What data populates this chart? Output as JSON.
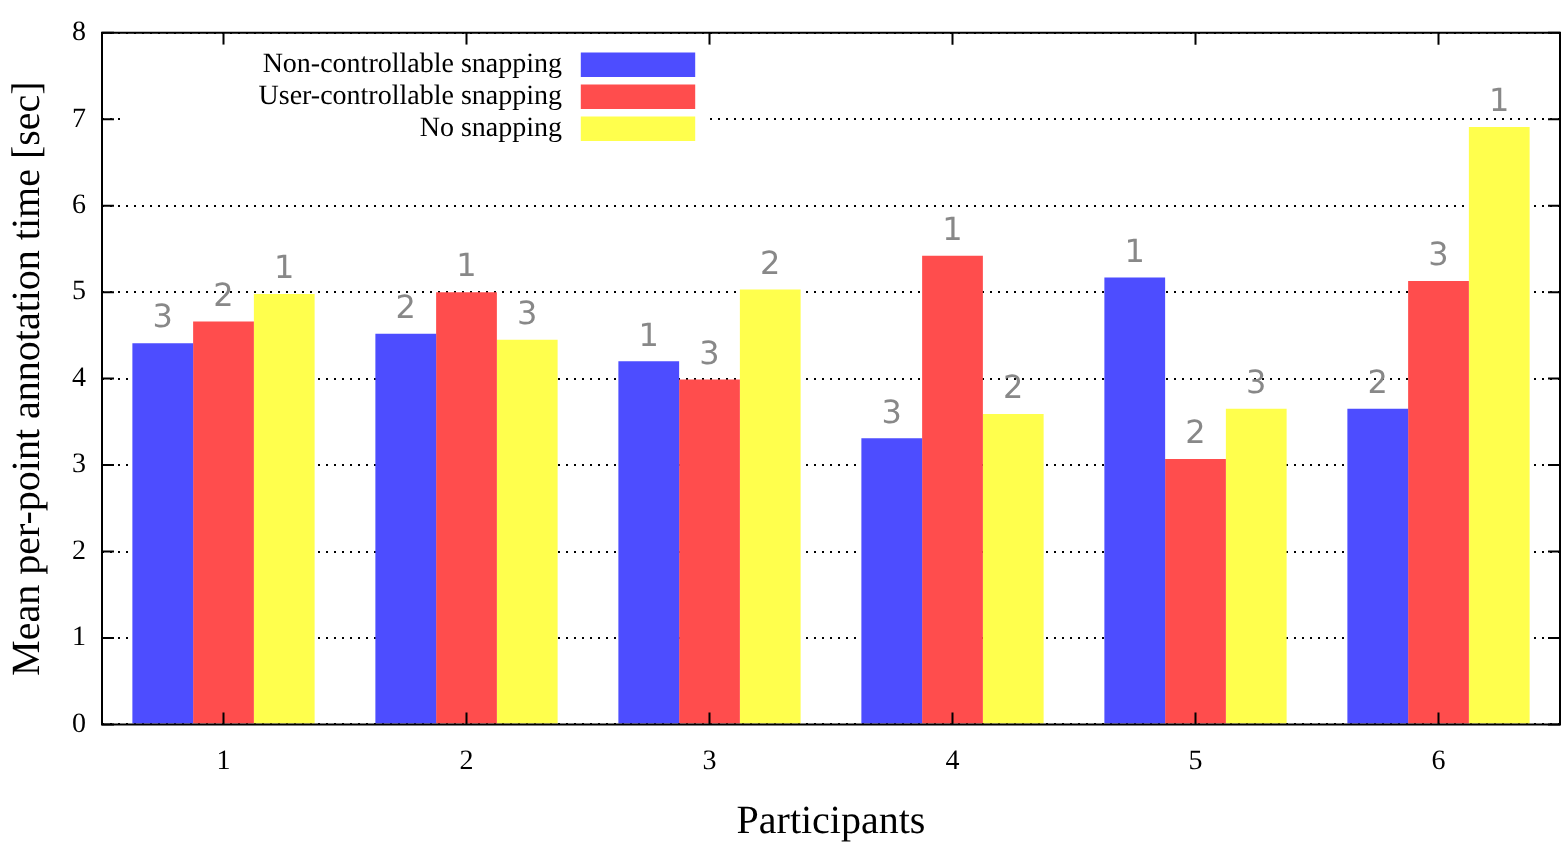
{
  "chart_data": {
    "type": "bar",
    "xlabel": "Participants",
    "ylabel": "Mean per-point annotation time [sec]",
    "categories": [
      "1",
      "2",
      "3",
      "4",
      "5",
      "6"
    ],
    "series": [
      {
        "name": "Non-controllable snapping",
        "color": "#4d4dff",
        "values": [
          4.41,
          4.52,
          4.2,
          3.31,
          5.17,
          3.65
        ]
      },
      {
        "name": "User-controllable snapping",
        "color": "#ff4d4d",
        "values": [
          4.66,
          5.0,
          3.99,
          5.42,
          3.07,
          5.13
        ]
      },
      {
        "name": "No snapping",
        "color": "#ffff4d",
        "values": [
          4.98,
          4.45,
          5.03,
          3.59,
          3.65,
          6.91
        ]
      }
    ],
    "annotations": [
      "3",
      "2",
      "1",
      "2",
      "1",
      "3",
      "1",
      "3",
      "2",
      "3",
      "1",
      "2",
      "1",
      "2",
      "3",
      "2",
      "3",
      "1"
    ],
    "ylim": [
      0,
      8
    ],
    "yticks": [
      0,
      1,
      2,
      3,
      4,
      5,
      6,
      7,
      8
    ],
    "grid": "y",
    "legend": "top left"
  }
}
